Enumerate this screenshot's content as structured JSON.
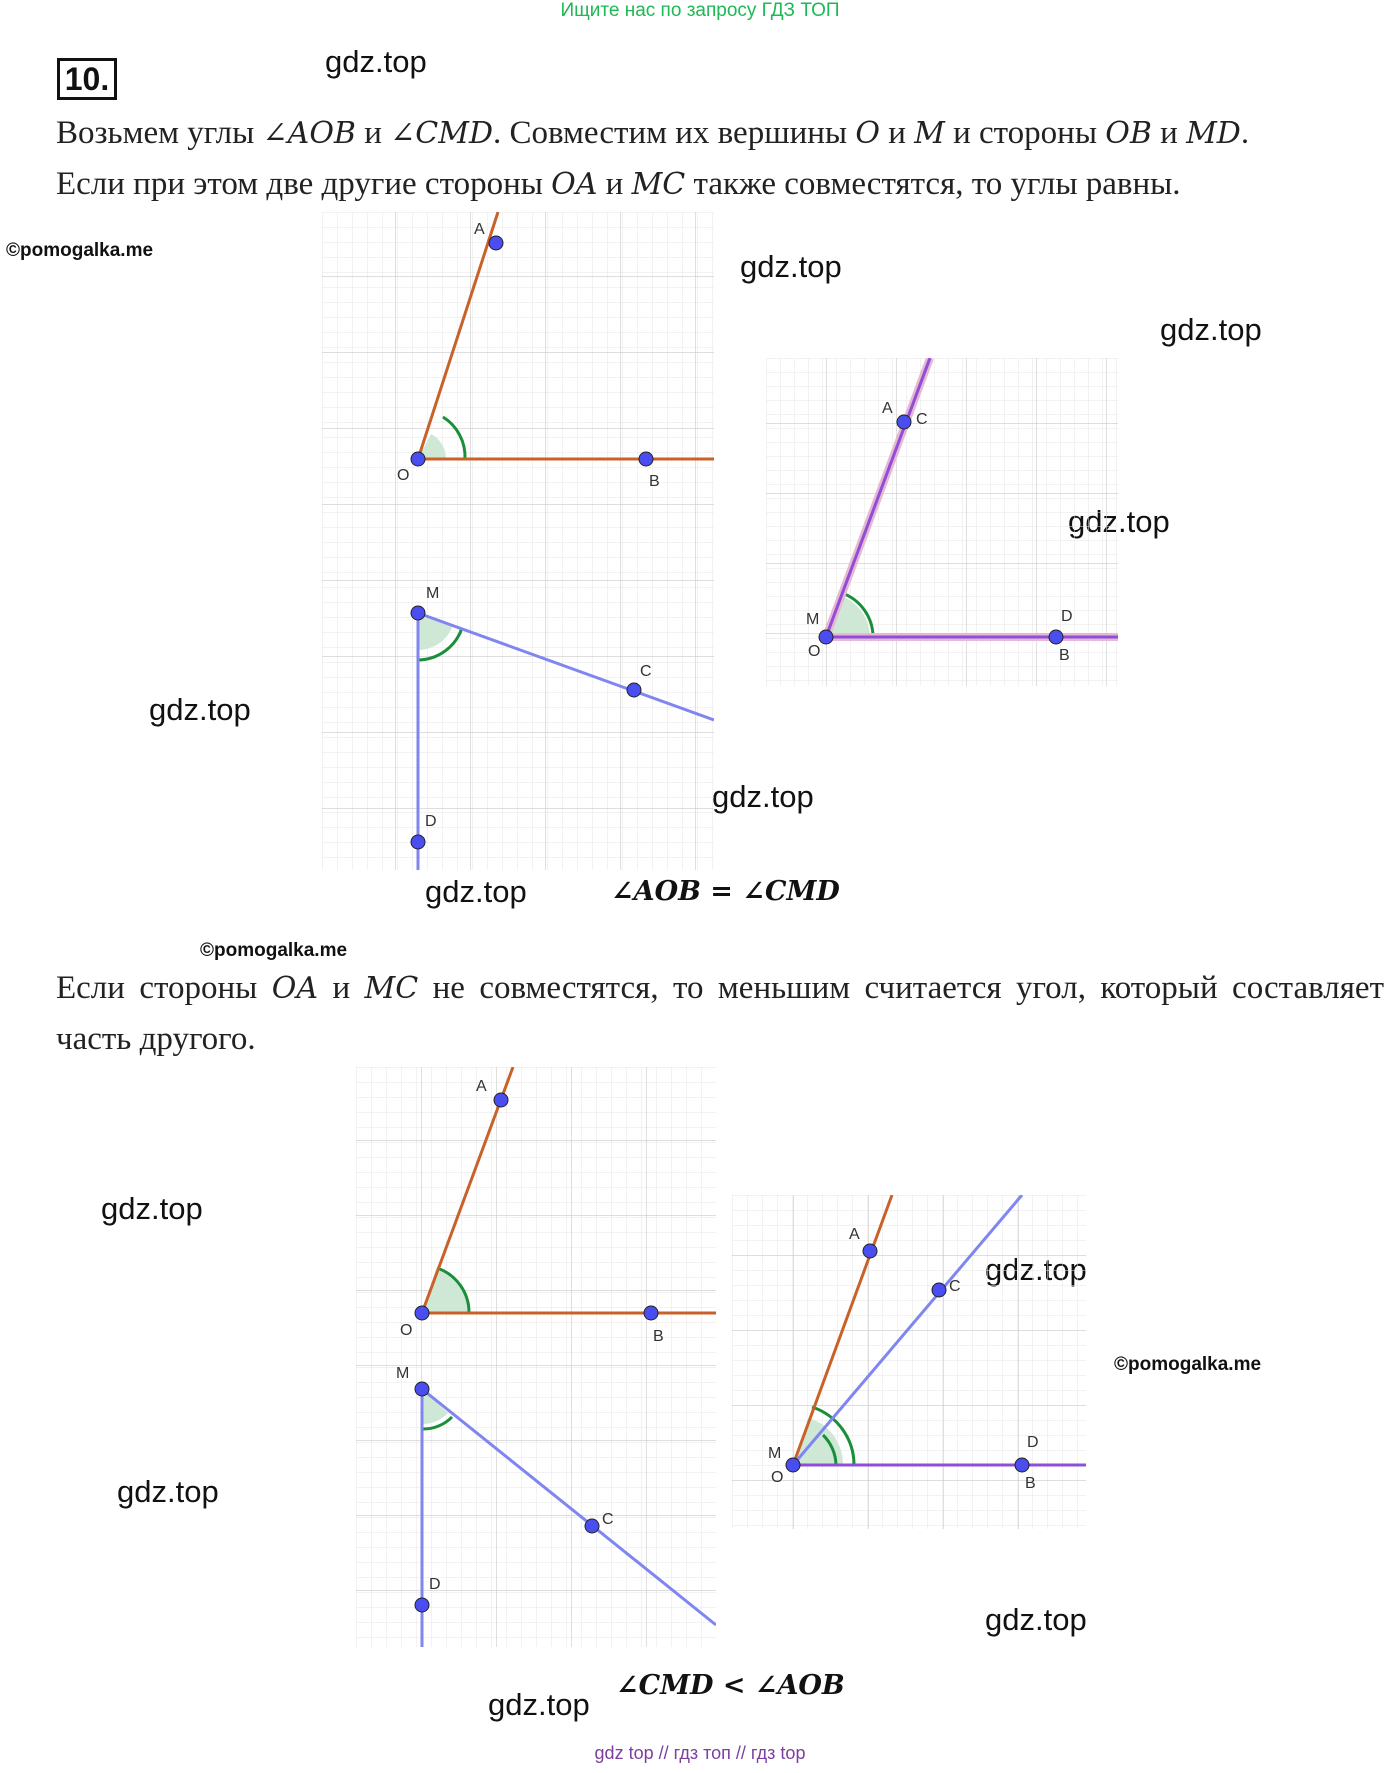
{
  "banner_top": "Ищите нас по запросу ГДЗ ТОП",
  "banner_bottom": "gdz top  //  гдз топ  //  гдз top",
  "task_number": "10.",
  "watermarks": {
    "gdz": "gdz.top",
    "pomogalka": "©pomogalka.me"
  },
  "paragraph1": {
    "p1": "Возьмем углы ",
    "m1": "∠AOB",
    "p2": " и ",
    "m2": "∠CMD",
    "p3": ". Совместим их вершины ",
    "m3": "O",
    "p4": " и ",
    "m4": "M",
    "p5": " и стороны ",
    "m5": "OB",
    "p6": " и ",
    "m6": "MD",
    "p7": ".",
    "line2_p1": "Если при этом две другие стороны ",
    "line2_m1": "OA",
    "line2_p2": " и ",
    "line2_m2": "MC",
    "line2_p3": " также совместятся, то углы равны."
  },
  "paragraph2": {
    "p1": "Если стороны ",
    "m1": "OA",
    "p2": " и ",
    "m2": "MC",
    "p3": " не совместятся, то меньшим считается угол, который составляет часть другого."
  },
  "formula_equal": "∠AOB = ∠CMD",
  "formula_less": "∠CMD < ∠AOB",
  "figure_labels": {
    "A": "A",
    "B": "B",
    "C": "C",
    "D": "D",
    "M": "M",
    "O": "O"
  },
  "colors": {
    "ray_orange": "#c8622a",
    "ray_blue": "#7f86f0",
    "ray_purple": "#8e4fd6",
    "arc_green": "#1a8f3a",
    "point_fill": "#4a4ef0",
    "grid": "#d9d9d9"
  }
}
